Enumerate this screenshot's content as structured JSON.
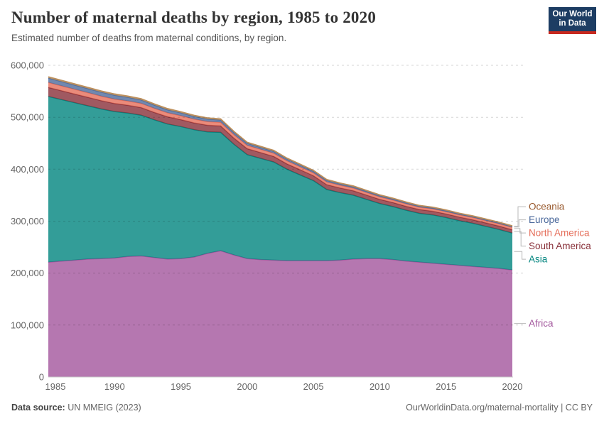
{
  "header": {
    "title": "Number of maternal deaths by region, 1985 to 2020",
    "subtitle": "Estimated number of deaths from maternal conditions, by region."
  },
  "logo": {
    "line1": "Our World",
    "line2": "in Data",
    "bg_color": "#1d3d63",
    "accent_color": "#c7291f"
  },
  "chart_data": {
    "type": "area",
    "stacked": true,
    "title": "Number of maternal deaths by region, 1985 to 2020",
    "xlabel": "",
    "ylabel": "",
    "x": [
      1985,
      1986,
      1987,
      1988,
      1989,
      1990,
      1991,
      1992,
      1993,
      1994,
      1995,
      1996,
      1997,
      1998,
      1999,
      2000,
      2001,
      2002,
      2003,
      2004,
      2005,
      2006,
      2007,
      2008,
      2009,
      2010,
      2011,
      2012,
      2013,
      2014,
      2015,
      2016,
      2017,
      2018,
      2019,
      2020
    ],
    "x_ticks": [
      1985,
      1990,
      1995,
      2000,
      2005,
      2010,
      2015,
      2020
    ],
    "ylim": [
      0,
      600000
    ],
    "y_ticks": [
      0,
      100000,
      200000,
      300000,
      400000,
      500000,
      600000
    ],
    "y_tick_labels": [
      "0",
      "100,000",
      "200,000",
      "300,000",
      "400,000",
      "500,000",
      "600,000"
    ],
    "grid": "dashed-horizontal",
    "grid_color": "rgba(0,0,0,0.16)",
    "axis_text_color": "#666666",
    "legend_position": "right",
    "series": [
      {
        "name": "Africa",
        "color": "#A2559C",
        "label_color": "#A2559C",
        "values": [
          221000,
          223000,
          225000,
          227000,
          228000,
          229000,
          232000,
          233000,
          230000,
          227000,
          228000,
          231000,
          238000,
          243000,
          235000,
          228000,
          226000,
          225000,
          224000,
          224000,
          224000,
          224000,
          225000,
          227000,
          228000,
          228000,
          226000,
          223000,
          221000,
          219000,
          217000,
          215000,
          213000,
          211000,
          209000,
          206000
        ]
      },
      {
        "name": "Asia",
        "color": "#00847E",
        "label_color": "#00847E",
        "values": [
          319000,
          311000,
          303000,
          295000,
          288000,
          282000,
          276000,
          271000,
          265000,
          260000,
          254000,
          245000,
          234000,
          228000,
          213000,
          200000,
          195000,
          189000,
          176000,
          165000,
          154000,
          137000,
          130000,
          123000,
          114000,
          106000,
          102000,
          98000,
          94000,
          93000,
          90000,
          86000,
          83000,
          79000,
          75000,
          71000
        ]
      },
      {
        "name": "South America",
        "color": "#883039",
        "label_color": "#883039",
        "values": [
          17500,
          17100,
          16700,
          16300,
          15900,
          15500,
          15100,
          14700,
          14300,
          13900,
          13500,
          13100,
          12700,
          12300,
          11900,
          11500,
          11100,
          10700,
          10300,
          9900,
          9500,
          9200,
          8900,
          8600,
          8300,
          8000,
          7800,
          7600,
          7400,
          7200,
          7000,
          6900,
          6800,
          6700,
          6600,
          6500
        ]
      },
      {
        "name": "North America",
        "color": "#E56E5A",
        "label_color": "#E56E5A",
        "values": [
          9500,
          9300,
          9100,
          8900,
          8700,
          8500,
          8300,
          8100,
          7900,
          7700,
          7500,
          7300,
          7100,
          6900,
          6700,
          6500,
          6300,
          6100,
          5900,
          5700,
          5500,
          5400,
          5200,
          5100,
          4900,
          4800,
          4700,
          4600,
          4400,
          4300,
          4200,
          4200,
          4300,
          4300,
          4400,
          4500
        ]
      },
      {
        "name": "Europe",
        "color": "#4C6A9C",
        "label_color": "#4C6A9C",
        "values": [
          8500,
          8300,
          8100,
          7900,
          7700,
          7500,
          7100,
          6700,
          6300,
          5900,
          5500,
          5200,
          4900,
          4600,
          4300,
          4000,
          3800,
          3600,
          3400,
          3200,
          3000,
          2800,
          2600,
          2500,
          2300,
          2200,
          2100,
          2000,
          1900,
          1900,
          1800,
          1700,
          1700,
          1600,
          1600,
          1500
        ]
      },
      {
        "name": "Oceania",
        "color": "#BC8E5A",
        "label_color": "#97572B",
        "values": [
          2500,
          2500,
          2400,
          2400,
          2400,
          2400,
          2300,
          2300,
          2300,
          2200,
          2200,
          2200,
          2100,
          2100,
          2100,
          2000,
          2000,
          2000,
          1900,
          1900,
          1900,
          1900,
          1800,
          1800,
          1800,
          1800,
          1700,
          1700,
          1700,
          1700,
          1700,
          1600,
          1600,
          1600,
          1600,
          1600
        ]
      }
    ]
  },
  "footer": {
    "source_label": "Data source:",
    "source_value": " UN MMEIG (2023)",
    "right_text": "OurWorldinData.org/maternal-mortality | CC BY"
  }
}
